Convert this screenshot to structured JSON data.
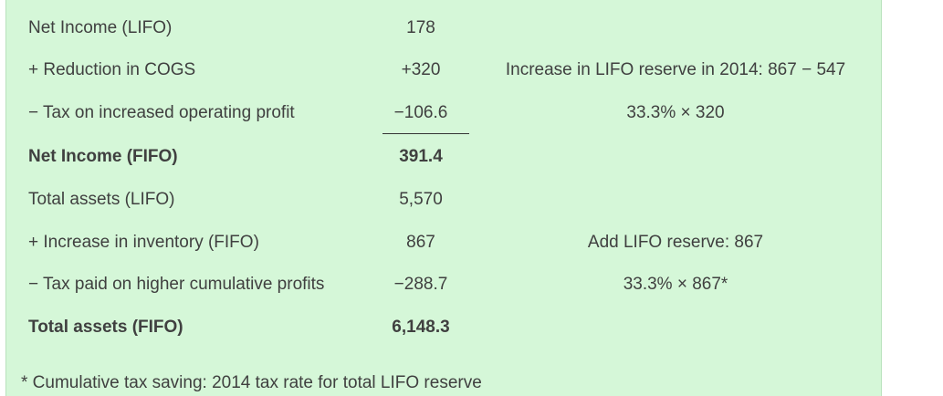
{
  "rows": [
    {
      "label": "Net Income (LIFO)",
      "value": "178",
      "note": ""
    },
    {
      "label": "+ Reduction in COGS",
      "value": "+320",
      "note": "Increase in LIFO reserve in 2014: 867 − 547"
    },
    {
      "label": "− Tax on increased operating profit",
      "value": "−106.6",
      "note": "33.3% × 320"
    },
    {
      "label": "Net Income (FIFO)",
      "value": "391.4",
      "note": ""
    },
    {
      "label": "Total assets (LIFO)",
      "value": "5,570",
      "note": ""
    },
    {
      "label": "+ Increase in inventory (FIFO)",
      "value": "867",
      "note": "Add LIFO reserve: 867"
    },
    {
      "label": "− Tax paid on higher cumulative profits",
      "value": "−288.7",
      "note": "33.3% × 867*"
    },
    {
      "label": "Total assets (FIFO)",
      "value": "6,148.3",
      "note": ""
    }
  ],
  "footnote": "* Cumulative tax saving: 2014 tax rate for total LIFO reserve",
  "colors": {
    "panel_background": "#d5f7d8",
    "text": "#404040"
  }
}
